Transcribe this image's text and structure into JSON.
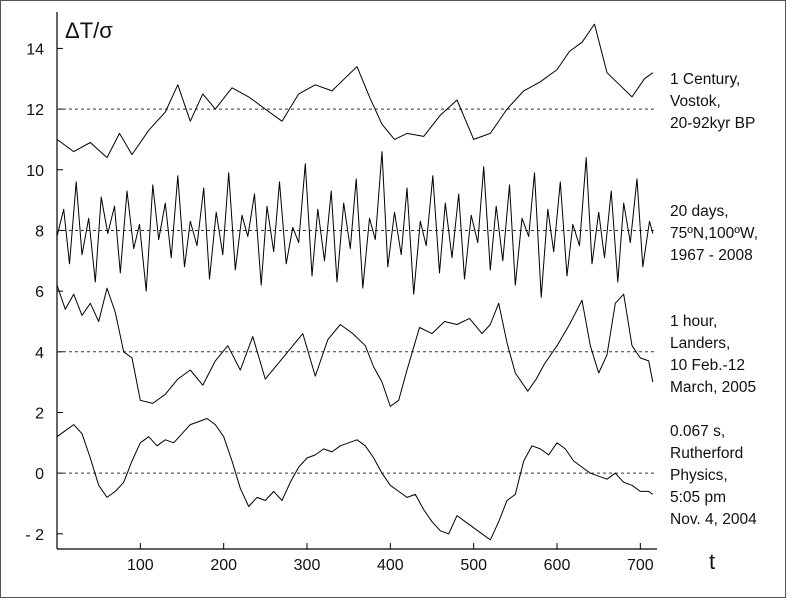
{
  "chart_data": {
    "type": "line",
    "ylabel": "ΔT/σ",
    "xlabel": "t",
    "xlim": [
      0,
      720
    ],
    "ylim": [
      -2.5,
      15.2
    ],
    "x_ticks": [
      100,
      200,
      300,
      400,
      500,
      600,
      700
    ],
    "y_ticks": [
      {
        "value": -2,
        "label": "- 2"
      },
      {
        "value": 0,
        "label": "0"
      },
      {
        "value": 2,
        "label": "2"
      },
      {
        "value": 4,
        "label": "4"
      },
      {
        "value": 6,
        "label": "6"
      },
      {
        "value": 8,
        "label": "8"
      },
      {
        "value": 10,
        "label": "10"
      },
      {
        "value": 12,
        "label": "12"
      },
      {
        "value": 14,
        "label": "14"
      }
    ],
    "reference_lines": [
      0,
      4,
      8,
      12
    ],
    "line_color": "#000000",
    "grid": false,
    "series": [
      {
        "offset": 12,
        "annotation": [
          "1 Century,",
          "Vostok,",
          "20-92kyr BP"
        ],
        "x": [
          0,
          20,
          40,
          60,
          75,
          90,
          110,
          130,
          145,
          160,
          175,
          190,
          210,
          230,
          250,
          270,
          290,
          310,
          330,
          345,
          360,
          375,
          390,
          405,
          420,
          440,
          460,
          480,
          500,
          520,
          540,
          560,
          580,
          600,
          615,
          630,
          645,
          660,
          675,
          690,
          705,
          715
        ],
        "y": [
          11.0,
          10.6,
          10.9,
          10.4,
          11.2,
          10.5,
          11.3,
          11.9,
          12.8,
          11.6,
          12.5,
          12.0,
          12.7,
          12.4,
          12.0,
          11.6,
          12.5,
          12.8,
          12.6,
          13.0,
          13.4,
          12.4,
          11.5,
          11.0,
          11.2,
          11.1,
          11.8,
          12.3,
          11.0,
          11.2,
          12.0,
          12.6,
          12.9,
          13.3,
          13.9,
          14.2,
          14.8,
          13.2,
          12.8,
          12.4,
          13.0,
          13.2
        ]
      },
      {
        "offset": 8,
        "annotation": [
          "20 days,",
          "75ºN,100ºW,",
          "1967 - 2008"
        ],
        "x": [
          0,
          8,
          15,
          23,
          30,
          38,
          46,
          53,
          61,
          69,
          76,
          84,
          92,
          99,
          107,
          115,
          122,
          130,
          137,
          145,
          153,
          160,
          168,
          176,
          183,
          191,
          199,
          206,
          214,
          222,
          229,
          237,
          245,
          252,
          260,
          267,
          275,
          283,
          290,
          298,
          306,
          313,
          321,
          329,
          336,
          344,
          352,
          359,
          367,
          375,
          382,
          390,
          397,
          405,
          413,
          420,
          428,
          436,
          443,
          451,
          459,
          466,
          474,
          482,
          489,
          497,
          505,
          512,
          520,
          527,
          535,
          543,
          550,
          558,
          566,
          573,
          581,
          589,
          596,
          604,
          612,
          619,
          627,
          635,
          642,
          650,
          657,
          665,
          673,
          680,
          688,
          696,
          703,
          711,
          715
        ],
        "y": [
          7.8,
          8.7,
          6.9,
          9.6,
          7.2,
          8.4,
          6.3,
          9.1,
          7.9,
          8.8,
          6.6,
          9.3,
          7.4,
          8.2,
          6.0,
          9.5,
          7.7,
          8.9,
          7.1,
          9.8,
          6.8,
          8.3,
          7.5,
          9.4,
          6.4,
          8.6,
          7.2,
          9.9,
          6.7,
          8.5,
          7.8,
          9.2,
          6.2,
          8.8,
          7.3,
          9.6,
          6.9,
          8.1,
          7.6,
          10.2,
          6.5,
          8.7,
          7.0,
          9.3,
          6.3,
          8.9,
          7.4,
          9.7,
          6.1,
          8.4,
          7.7,
          10.6,
          6.8,
          8.6,
          7.2,
          9.4,
          5.9,
          8.3,
          7.5,
          9.8,
          6.6,
          8.9,
          7.1,
          9.2,
          6.4,
          8.5,
          7.6,
          10.1,
          6.7,
          8.8,
          7.0,
          9.5,
          6.2,
          8.4,
          7.8,
          9.9,
          5.8,
          8.7,
          7.3,
          9.6,
          6.5,
          8.2,
          7.5,
          10.4,
          6.9,
          8.6,
          7.1,
          9.3,
          6.3,
          8.9,
          7.6,
          9.7,
          6.8,
          8.3,
          7.9
        ]
      },
      {
        "offset": 4,
        "annotation": [
          "1 hour,",
          "Landers,",
          "10 Feb.-12",
          "March, 2005"
        ],
        "x": [
          0,
          10,
          20,
          30,
          40,
          50,
          60,
          70,
          80,
          90,
          100,
          115,
          130,
          145,
          160,
          175,
          190,
          205,
          220,
          235,
          250,
          265,
          280,
          295,
          310,
          325,
          340,
          355,
          370,
          380,
          390,
          400,
          410,
          420,
          435,
          450,
          465,
          480,
          495,
          510,
          520,
          530,
          540,
          550,
          565,
          575,
          585,
          600,
          615,
          630,
          640,
          650,
          660,
          670,
          680,
          690,
          700,
          710,
          715
        ],
        "y": [
          6.2,
          5.4,
          5.9,
          5.2,
          5.6,
          5.0,
          6.1,
          5.3,
          4.0,
          3.8,
          2.4,
          2.3,
          2.6,
          3.1,
          3.4,
          2.9,
          3.7,
          4.2,
          3.4,
          4.5,
          3.1,
          3.6,
          4.1,
          4.6,
          3.2,
          4.4,
          4.9,
          4.6,
          4.2,
          3.5,
          3.0,
          2.2,
          2.4,
          3.4,
          4.8,
          4.6,
          5.0,
          4.9,
          5.1,
          4.6,
          4.9,
          5.6,
          4.3,
          3.3,
          2.7,
          3.1,
          3.6,
          4.2,
          4.9,
          5.7,
          4.2,
          3.3,
          3.9,
          5.6,
          5.9,
          4.2,
          3.8,
          3.7,
          3.0
        ]
      },
      {
        "offset": 0,
        "annotation": [
          "0.067 s,",
          "Rutherford",
          "Physics,",
          "5:05 pm",
          "Nov. 4, 2004"
        ],
        "x": [
          0,
          10,
          20,
          30,
          40,
          50,
          60,
          70,
          80,
          90,
          100,
          110,
          120,
          130,
          140,
          150,
          160,
          170,
          180,
          190,
          200,
          210,
          220,
          230,
          240,
          250,
          260,
          270,
          280,
          290,
          300,
          310,
          320,
          330,
          340,
          350,
          360,
          370,
          380,
          390,
          400,
          410,
          420,
          430,
          440,
          450,
          460,
          470,
          480,
          490,
          500,
          510,
          520,
          530,
          540,
          550,
          560,
          570,
          580,
          590,
          600,
          610,
          620,
          630,
          640,
          650,
          660,
          670,
          680,
          690,
          700,
          710,
          715
        ],
        "y": [
          1.2,
          1.4,
          1.6,
          1.3,
          0.5,
          -0.4,
          -0.8,
          -0.6,
          -0.3,
          0.4,
          1.0,
          1.2,
          0.9,
          1.1,
          1.0,
          1.3,
          1.6,
          1.7,
          1.8,
          1.6,
          1.2,
          0.4,
          -0.5,
          -1.1,
          -0.8,
          -0.9,
          -0.6,
          -0.9,
          -0.3,
          0.2,
          0.5,
          0.6,
          0.8,
          0.7,
          0.9,
          1.0,
          1.1,
          0.9,
          0.5,
          0.0,
          -0.4,
          -0.6,
          -0.8,
          -0.7,
          -1.2,
          -1.6,
          -1.9,
          -2.0,
          -1.4,
          -1.6,
          -1.8,
          -2.0,
          -2.2,
          -1.6,
          -0.9,
          -0.7,
          0.4,
          0.9,
          0.8,
          0.6,
          1.0,
          0.8,
          0.4,
          0.2,
          0.0,
          -0.1,
          -0.2,
          0.0,
          -0.3,
          -0.4,
          -0.6,
          -0.6,
          -0.7
        ]
      }
    ]
  }
}
